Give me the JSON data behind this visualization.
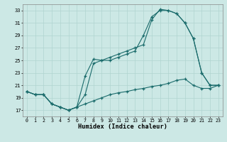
{
  "xlabel": "Humidex (Indice chaleur)",
  "background_color": "#cce8e5",
  "grid_color": "#b0d4d0",
  "line_color": "#1a6b6b",
  "xlim": [
    -0.5,
    23.5
  ],
  "ylim": [
    16.0,
    34.0
  ],
  "yticks": [
    17,
    19,
    21,
    23,
    25,
    27,
    29,
    31,
    33
  ],
  "xticks": [
    0,
    1,
    2,
    3,
    4,
    5,
    6,
    7,
    8,
    9,
    10,
    11,
    12,
    13,
    14,
    15,
    16,
    17,
    18,
    19,
    20,
    21,
    22,
    23
  ],
  "line1_x": [
    0,
    1,
    2,
    3,
    4,
    5,
    6,
    7,
    8,
    9,
    10,
    11,
    12,
    13,
    14,
    15,
    16,
    17,
    18,
    19,
    20,
    21,
    22,
    23
  ],
  "line1_y": [
    20.0,
    19.5,
    19.5,
    18.0,
    17.5,
    17.0,
    17.5,
    19.5,
    24.5,
    25.0,
    25.0,
    25.5,
    26.0,
    26.5,
    29.0,
    32.0,
    33.0,
    33.0,
    32.5,
    31.0,
    28.5,
    23.0,
    21.0,
    21.0
  ],
  "line2_x": [
    0,
    1,
    2,
    3,
    4,
    5,
    6,
    7,
    8,
    9,
    10,
    11,
    12,
    13,
    14,
    15,
    16,
    17,
    18,
    19,
    20,
    21,
    22,
    23
  ],
  "line2_y": [
    20.0,
    19.5,
    19.5,
    18.0,
    17.5,
    17.0,
    17.5,
    22.5,
    25.2,
    25.0,
    25.5,
    26.0,
    26.5,
    27.0,
    27.5,
    31.5,
    33.2,
    33.0,
    32.5,
    31.0,
    28.5,
    23.0,
    21.0,
    21.0
  ],
  "line3_x": [
    0,
    1,
    2,
    3,
    4,
    5,
    6,
    7,
    8,
    9,
    10,
    11,
    12,
    13,
    14,
    15,
    16,
    17,
    18,
    19,
    20,
    21,
    22,
    23
  ],
  "line3_y": [
    20.0,
    19.5,
    19.5,
    18.0,
    17.5,
    17.0,
    17.5,
    18.0,
    18.5,
    19.0,
    19.5,
    19.8,
    20.0,
    20.3,
    20.5,
    20.8,
    21.0,
    21.3,
    21.8,
    22.0,
    21.0,
    20.5,
    20.5,
    21.0
  ]
}
